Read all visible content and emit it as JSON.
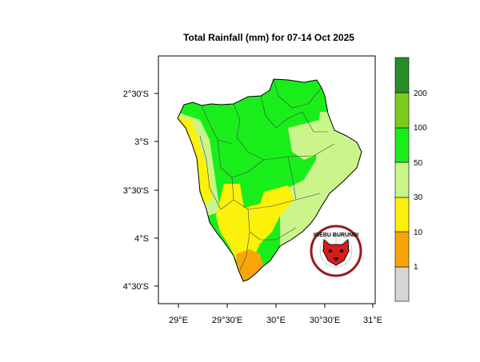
{
  "title": "Total Rainfall (mm) for 07-14 Oct 2025",
  "x_ticks": [
    "29°E",
    "29°30'E",
    "30°E",
    "30°30'E",
    "31°E"
  ],
  "y_ticks": [
    "2°30'S",
    "3°S",
    "3°30'S",
    "4°S",
    "4°30'S"
  ],
  "colorbar": {
    "labels": [
      "1",
      "10",
      "30",
      "50",
      "100",
      "200"
    ],
    "colors": [
      "#d6d6d6",
      "#f7a60a",
      "#fbf10a",
      "#c9f58b",
      "#19ee1b",
      "#7bcc1f",
      "#2a8c29"
    ]
  },
  "region_colors": {
    "north": "#19ee1b",
    "east_lowland": "#c9f58b",
    "central": "#fbf10a",
    "southern_tip": "#f7a60a"
  },
  "logo": {
    "text": "IGEBU BURUNDI",
    "ring_color": "#9a1a1a",
    "face_color": "#d81b1b"
  }
}
